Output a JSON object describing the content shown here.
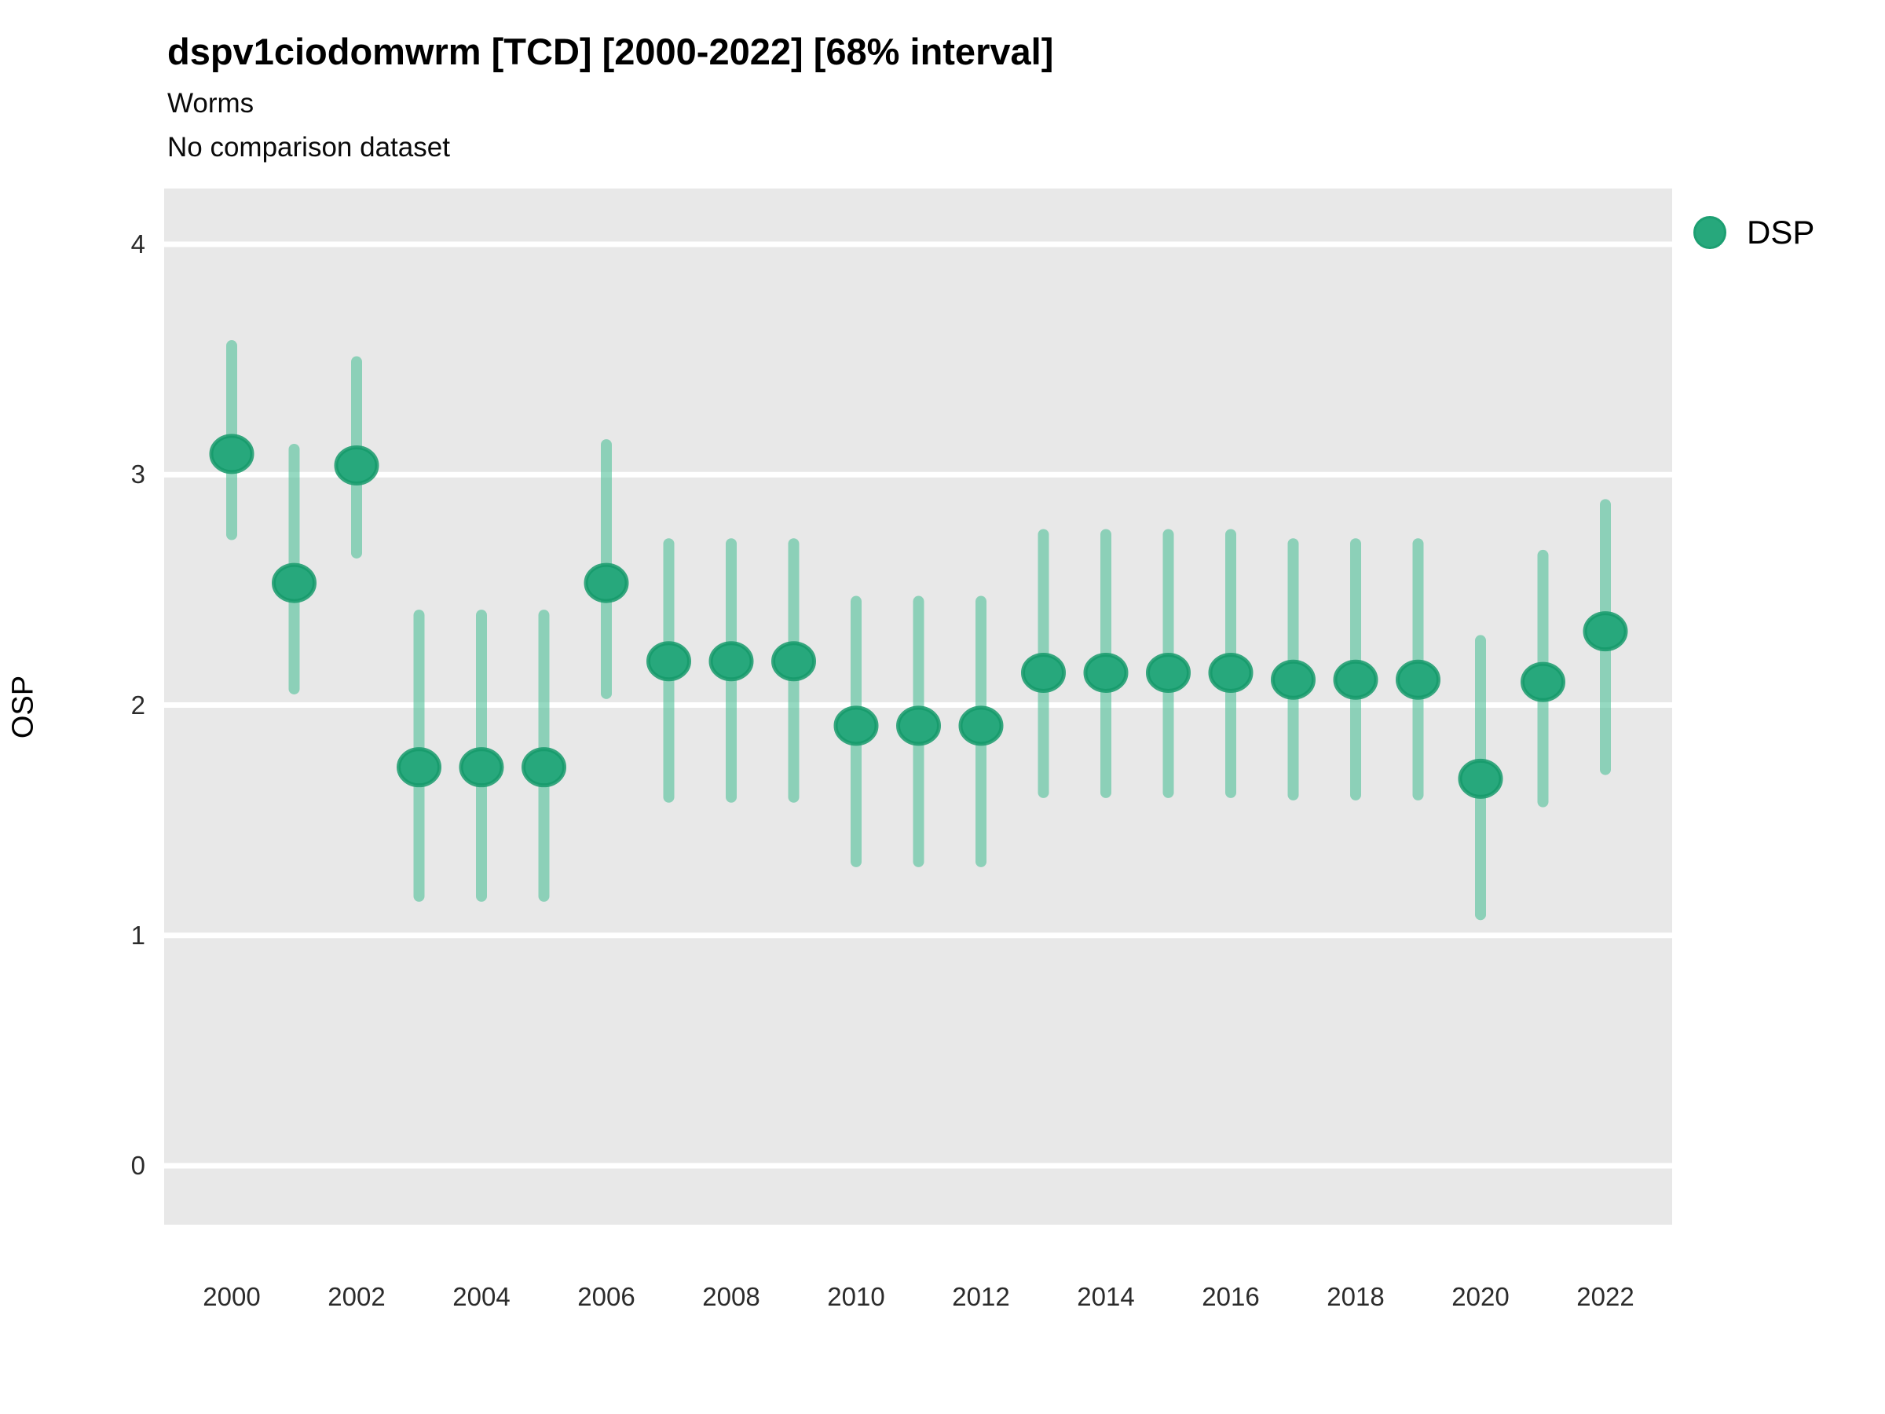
{
  "header": {
    "title": "dspv1ciodomwrm [TCD] [2000-2022] [68% interval]",
    "subtitle1": "Worms",
    "subtitle2": "No comparison dataset"
  },
  "legend": {
    "label": "DSP"
  },
  "colors": {
    "panel_background": "#e8e8e8",
    "gridline": "#ffffff",
    "point_fill": "#27a87c",
    "point_stroke": "#169a6b",
    "errorbar": "#4ec098",
    "tick_text": "#2b2b2b"
  },
  "chart_data": {
    "type": "scatter",
    "title": "dspv1ciodomwrm [TCD] [2000-2022] [68% interval]",
    "subtitle": [
      "Worms",
      "No comparison dataset"
    ],
    "xlabel": "",
    "ylabel": "OSP",
    "interval": "68%",
    "legend_position": "right",
    "grid": "horizontal-white-on-gray",
    "x": [
      2000,
      2001,
      2002,
      2003,
      2004,
      2005,
      2006,
      2007,
      2008,
      2009,
      2010,
      2011,
      2012,
      2013,
      2014,
      2015,
      2016,
      2017,
      2018,
      2019,
      2020,
      2021,
      2022
    ],
    "series": [
      {
        "name": "DSP",
        "values": [
          3.09,
          2.53,
          3.04,
          1.73,
          1.73,
          1.73,
          2.53,
          2.19,
          2.19,
          2.19,
          1.91,
          1.91,
          1.91,
          2.14,
          2.14,
          2.14,
          2.14,
          2.11,
          2.11,
          2.11,
          1.68,
          2.1,
          2.32
        ],
        "lower": [
          2.74,
          2.07,
          2.66,
          1.17,
          1.17,
          1.17,
          2.05,
          1.6,
          1.6,
          1.6,
          1.32,
          1.32,
          1.32,
          1.62,
          1.62,
          1.62,
          1.62,
          1.61,
          1.61,
          1.61,
          1.09,
          1.58,
          1.72
        ],
        "upper": [
          3.56,
          3.11,
          3.49,
          2.39,
          2.39,
          2.39,
          3.13,
          2.7,
          2.7,
          2.7,
          2.45,
          2.45,
          2.45,
          2.74,
          2.74,
          2.74,
          2.74,
          2.7,
          2.7,
          2.7,
          2.28,
          2.65,
          2.87
        ]
      }
    ],
    "xticks": [
      2000,
      2002,
      2004,
      2006,
      2008,
      2010,
      2012,
      2014,
      2016,
      2018,
      2020,
      2022
    ],
    "yticks": [
      0,
      1,
      2,
      3,
      4
    ],
    "ylim": [
      -0.26,
      4.24
    ],
    "xlim": [
      1998.9,
      2023.1
    ]
  }
}
